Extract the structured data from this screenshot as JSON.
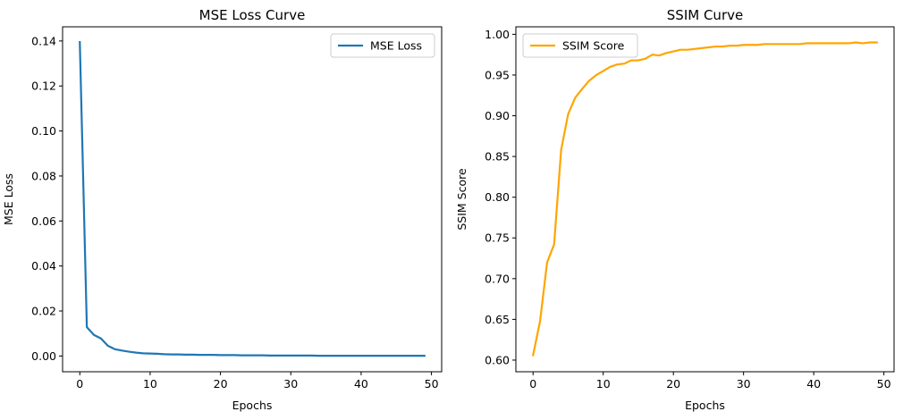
{
  "chart_data": [
    {
      "type": "line",
      "title": "MSE Loss Curve",
      "xlabel": "Epochs",
      "ylabel": "MSE Loss",
      "xlim": [
        -2.45,
        51.45
      ],
      "ylim": [
        -0.007,
        0.1463
      ],
      "xticks": [
        0,
        10,
        20,
        30,
        40,
        50
      ],
      "xtick_labels": [
        "0",
        "10",
        "20",
        "30",
        "40",
        "50"
      ],
      "yticks": [
        0.0,
        0.02,
        0.04,
        0.06,
        0.08,
        0.1,
        0.12,
        0.14
      ],
      "ytick_labels": [
        "0.00",
        "0.02",
        "0.04",
        "0.06",
        "0.08",
        "0.10",
        "0.12",
        "0.14"
      ],
      "grid": false,
      "legend": "top-right",
      "series": [
        {
          "name": "MSE Loss",
          "color": "#1f77b4",
          "x": [
            0,
            1,
            2,
            3,
            4,
            5,
            6,
            7,
            8,
            9,
            10,
            11,
            12,
            13,
            14,
            15,
            16,
            17,
            18,
            19,
            20,
            21,
            22,
            23,
            24,
            25,
            26,
            27,
            28,
            29,
            30,
            31,
            32,
            33,
            34,
            35,
            36,
            37,
            38,
            39,
            40,
            41,
            42,
            43,
            44,
            45,
            46,
            47,
            48,
            49
          ],
          "values": [
            0.1395,
            0.0128,
            0.0094,
            0.0078,
            0.0045,
            0.003,
            0.0024,
            0.0019,
            0.0015,
            0.0012,
            0.0011,
            0.001,
            0.0008,
            0.0007,
            0.0007,
            0.0006,
            0.0006,
            0.0005,
            0.0005,
            0.0005,
            0.0004,
            0.0004,
            0.0004,
            0.0003,
            0.0003,
            0.0003,
            0.0003,
            0.0002,
            0.0002,
            0.0002,
            0.0002,
            0.0002,
            0.0002,
            0.0002,
            0.0001,
            0.0001,
            0.0001,
            0.0001,
            0.0001,
            0.0001,
            0.0001,
            0.0001,
            0.0001,
            0.0001,
            0.0001,
            0.0001,
            0.0001,
            0.0001,
            0.0001,
            0.0001
          ]
        }
      ]
    },
    {
      "type": "line",
      "title": "SSIM Curve",
      "xlabel": "Epochs",
      "ylabel": "SSIM Score",
      "xlim": [
        -2.45,
        51.45
      ],
      "ylim": [
        0.5857,
        1.0092
      ],
      "xticks": [
        0,
        10,
        20,
        30,
        40,
        50
      ],
      "xtick_labels": [
        "0",
        "10",
        "20",
        "30",
        "40",
        "50"
      ],
      "yticks": [
        0.6,
        0.65,
        0.7,
        0.75,
        0.8,
        0.85,
        0.9,
        0.95,
        1.0
      ],
      "ytick_labels": [
        "0.60",
        "0.65",
        "0.70",
        "0.75",
        "0.80",
        "0.85",
        "0.90",
        "0.95",
        "1.00"
      ],
      "grid": false,
      "legend": "top-left",
      "series": [
        {
          "name": "SSIM Score",
          "color": "#ffa500",
          "x": [
            0,
            1,
            2,
            3,
            4,
            5,
            6,
            7,
            8,
            9,
            10,
            11,
            12,
            13,
            14,
            15,
            16,
            17,
            18,
            19,
            20,
            21,
            22,
            23,
            24,
            25,
            26,
            27,
            28,
            29,
            30,
            31,
            32,
            33,
            34,
            35,
            36,
            37,
            38,
            39,
            40,
            41,
            42,
            43,
            44,
            45,
            46,
            47,
            48,
            49
          ],
          "values": [
            0.606,
            0.648,
            0.72,
            0.742,
            0.858,
            0.902,
            0.922,
            0.933,
            0.943,
            0.95,
            0.955,
            0.96,
            0.963,
            0.964,
            0.968,
            0.968,
            0.97,
            0.975,
            0.974,
            0.977,
            0.979,
            0.981,
            0.981,
            0.982,
            0.983,
            0.984,
            0.985,
            0.985,
            0.986,
            0.986,
            0.987,
            0.987,
            0.987,
            0.988,
            0.988,
            0.988,
            0.988,
            0.988,
            0.988,
            0.989,
            0.989,
            0.989,
            0.989,
            0.989,
            0.989,
            0.989,
            0.99,
            0.989,
            0.99,
            0.99
          ]
        }
      ]
    }
  ]
}
